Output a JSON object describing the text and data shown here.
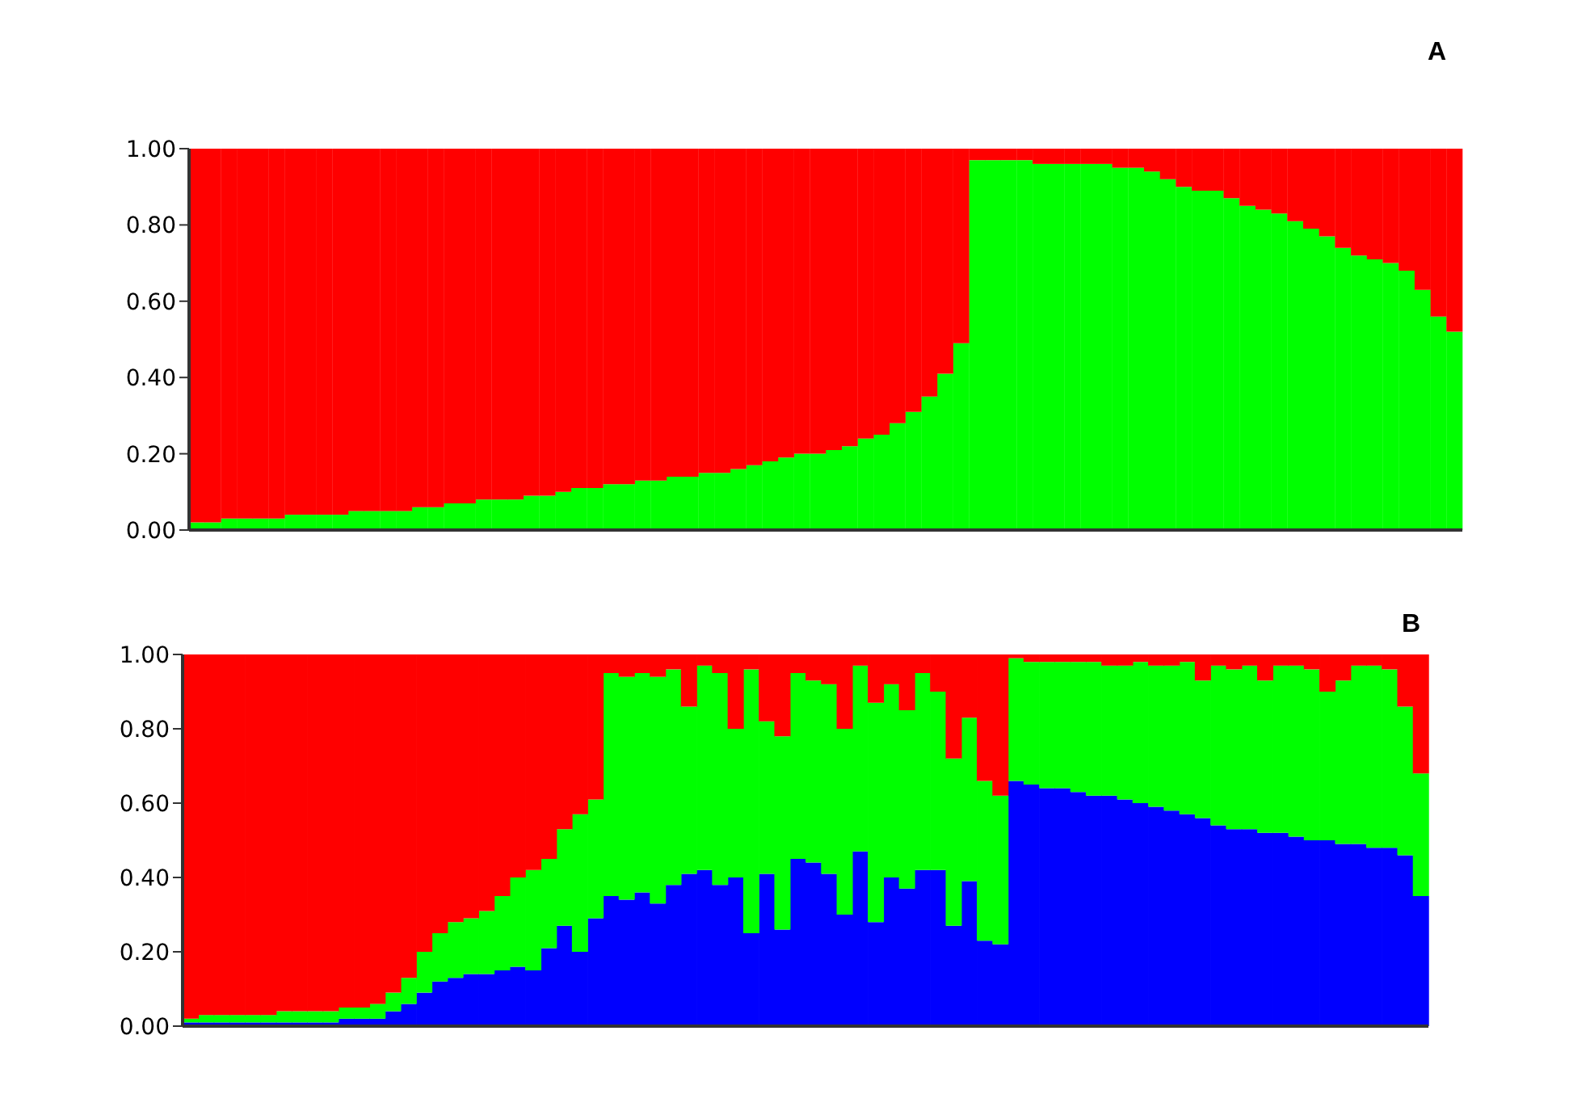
{
  "chart_data": [
    {
      "type": "bar",
      "title": "A",
      "stacked": true,
      "tick_labels": "y",
      "legend": false,
      "grid": false,
      "categories": [
        null,
        null,
        null,
        null,
        null,
        null,
        null,
        null,
        null,
        null,
        null,
        null,
        null,
        null,
        null,
        null,
        null,
        null,
        null,
        null,
        null,
        null,
        null,
        null,
        null,
        null,
        null,
        null,
        null,
        null,
        null,
        null,
        null,
        null,
        null,
        null,
        null,
        null,
        null,
        null,
        null,
        null,
        null,
        null,
        null,
        null,
        null,
        null,
        null,
        null,
        null,
        null,
        null,
        null,
        null,
        null,
        null,
        null,
        null,
        null,
        null,
        null,
        null,
        null,
        null,
        null,
        null,
        null,
        null,
        null,
        null,
        null,
        null,
        null,
        null,
        null,
        null,
        null,
        null,
        null
      ],
      "ylim": [
        0,
        1
      ],
      "yticks": [
        {
          "value": 0,
          "label": "0.00"
        },
        {
          "value": 0.2,
          "label": "0.20"
        },
        {
          "value": 0.4,
          "label": "0.40"
        },
        {
          "value": 0.6,
          "label": "0.60"
        },
        {
          "value": 0.8,
          "label": "0.80"
        },
        {
          "value": 1,
          "label": "1.00"
        }
      ],
      "series": [
        {
          "color": "#00ff00",
          "values": [
            0.02,
            0.02,
            0.03,
            0.03,
            0.03,
            0.03,
            0.04,
            0.04,
            0.04,
            0.04,
            0.05,
            0.05,
            0.05,
            0.05,
            0.06,
            0.06,
            0.07,
            0.07,
            0.08,
            0.08,
            0.08,
            0.09,
            0.09,
            0.1,
            0.11,
            0.11,
            0.12,
            0.12,
            0.13,
            0.13,
            0.14,
            0.14,
            0.15,
            0.15,
            0.16,
            0.17,
            0.18,
            0.19,
            0.2,
            0.2,
            0.21,
            0.22,
            0.24,
            0.25,
            0.28,
            0.31,
            0.35,
            0.41,
            0.49,
            0.97,
            0.97,
            0.97,
            0.97,
            0.96,
            0.96,
            0.96,
            0.96,
            0.96,
            0.95,
            0.95,
            0.94,
            0.92,
            0.9,
            0.89,
            0.89,
            0.87,
            0.85,
            0.84,
            0.83,
            0.81,
            0.79,
            0.77,
            0.74,
            0.72,
            0.71,
            0.7,
            0.68,
            0.63,
            0.56,
            0.52
          ]
        },
        {
          "color": "#ff0000",
          "values": [
            0.98,
            0.98,
            0.97,
            0.97,
            0.97,
            0.97,
            0.96,
            0.96,
            0.96,
            0.96,
            0.95,
            0.95,
            0.95,
            0.95,
            0.94,
            0.94,
            0.93,
            0.93,
            0.92,
            0.92,
            0.92,
            0.91,
            0.91,
            0.9,
            0.89,
            0.89,
            0.88,
            0.88,
            0.87,
            0.87,
            0.86,
            0.86,
            0.85,
            0.85,
            0.84,
            0.83,
            0.82,
            0.81,
            0.8,
            0.8,
            0.79,
            0.78,
            0.76,
            0.75,
            0.72,
            0.69,
            0.65,
            0.59,
            0.51,
            0.03,
            0.03,
            0.03,
            0.03,
            0.04,
            0.04,
            0.04,
            0.04,
            0.04,
            0.05,
            0.05,
            0.06,
            0.08,
            0.1,
            0.11,
            0.11,
            0.13,
            0.15,
            0.16,
            0.17,
            0.19,
            0.21,
            0.23,
            0.26,
            0.28,
            0.29,
            0.3,
            0.32,
            0.37,
            0.44,
            0.48
          ]
        }
      ]
    },
    {
      "type": "bar",
      "title": "B",
      "stacked": true,
      "tick_labels": "y",
      "legend": false,
      "grid": false,
      "categories": [
        null,
        null,
        null,
        null,
        null,
        null,
        null,
        null,
        null,
        null,
        null,
        null,
        null,
        null,
        null,
        null,
        null,
        null,
        null,
        null,
        null,
        null,
        null,
        null,
        null,
        null,
        null,
        null,
        null,
        null,
        null,
        null,
        null,
        null,
        null,
        null,
        null,
        null,
        null,
        null,
        null,
        null,
        null,
        null,
        null,
        null,
        null,
        null,
        null,
        null,
        null,
        null,
        null,
        null,
        null,
        null,
        null,
        null,
        null,
        null,
        null,
        null,
        null,
        null,
        null,
        null,
        null,
        null,
        null,
        null,
        null,
        null,
        null,
        null,
        null,
        null,
        null,
        null,
        null,
        null
      ],
      "ylim": [
        0,
        1
      ],
      "yticks": [
        {
          "value": 0,
          "label": "0.00"
        },
        {
          "value": 0.2,
          "label": "0.20"
        },
        {
          "value": 0.4,
          "label": "0.40"
        },
        {
          "value": 0.6,
          "label": "0.60"
        },
        {
          "value": 0.8,
          "label": "0.80"
        },
        {
          "value": 1,
          "label": "1.00"
        }
      ],
      "series": [
        {
          "color": "#0000ff",
          "values": [
            0.01,
            0.01,
            0.01,
            0.01,
            0.01,
            0.01,
            0.01,
            0.01,
            0.01,
            0.01,
            0.02,
            0.02,
            0.02,
            0.04,
            0.06,
            0.09,
            0.12,
            0.13,
            0.14,
            0.14,
            0.15,
            0.16,
            0.15,
            0.21,
            0.27,
            0.2,
            0.29,
            0.35,
            0.34,
            0.36,
            0.33,
            0.38,
            0.41,
            0.42,
            0.38,
            0.4,
            0.25,
            0.41,
            0.26,
            0.45,
            0.44,
            0.41,
            0.3,
            0.47,
            0.28,
            0.4,
            0.37,
            0.42,
            0.42,
            0.27,
            0.39,
            0.23,
            0.22,
            0.66,
            0.65,
            0.64,
            0.64,
            0.63,
            0.62,
            0.62,
            0.61,
            0.6,
            0.59,
            0.58,
            0.57,
            0.56,
            0.54,
            0.53,
            0.53,
            0.52,
            0.52,
            0.51,
            0.5,
            0.5,
            0.49,
            0.49,
            0.48,
            0.48,
            0.46,
            0.35
          ]
        },
        {
          "color": "#00ff00",
          "values": [
            0.01,
            0.02,
            0.02,
            0.02,
            0.02,
            0.02,
            0.03,
            0.03,
            0.03,
            0.03,
            0.03,
            0.03,
            0.04,
            0.05,
            0.07,
            0.11,
            0.13,
            0.15,
            0.15,
            0.17,
            0.2,
            0.24,
            0.27,
            0.24,
            0.26,
            0.37,
            0.32,
            0.6,
            0.6,
            0.59,
            0.61,
            0.58,
            0.45,
            0.55,
            0.57,
            0.4,
            0.71,
            0.41,
            0.52,
            0.5,
            0.49,
            0.51,
            0.5,
            0.5,
            0.59,
            0.52,
            0.48,
            0.53,
            0.48,
            0.45,
            0.44,
            0.43,
            0.4,
            0.33,
            0.33,
            0.34,
            0.34,
            0.35,
            0.36,
            0.35,
            0.36,
            0.38,
            0.38,
            0.39,
            0.41,
            0.37,
            0.43,
            0.43,
            0.44,
            0.41,
            0.45,
            0.46,
            0.46,
            0.4,
            0.44,
            0.48,
            0.49,
            0.48,
            0.4,
            0.33
          ]
        },
        {
          "color": "#ff0000",
          "values": [
            0.98,
            0.97,
            0.97,
            0.97,
            0.97,
            0.97,
            0.96,
            0.96,
            0.96,
            0.96,
            0.95,
            0.95,
            0.94,
            0.91,
            0.87,
            0.8,
            0.75,
            0.72,
            0.71,
            0.69,
            0.65,
            0.6,
            0.58,
            0.55,
            0.47,
            0.43,
            0.39,
            0.05,
            0.06,
            0.05,
            0.06,
            0.04,
            0.14,
            0.03,
            0.05,
            0.2,
            0.04,
            0.18,
            0.22,
            0.05,
            0.07,
            0.08,
            0.2,
            0.03,
            0.13,
            0.08,
            0.15,
            0.05,
            0.1,
            0.28,
            0.17,
            0.34,
            0.38,
            0.01,
            0.02,
            0.02,
            0.02,
            0.02,
            0.02,
            0.03,
            0.03,
            0.02,
            0.03,
            0.03,
            0.02,
            0.07,
            0.03,
            0.04,
            0.03,
            0.07,
            0.03,
            0.03,
            0.04,
            0.1,
            0.07,
            0.03,
            0.03,
            0.04,
            0.14,
            0.32
          ]
        }
      ]
    }
  ]
}
